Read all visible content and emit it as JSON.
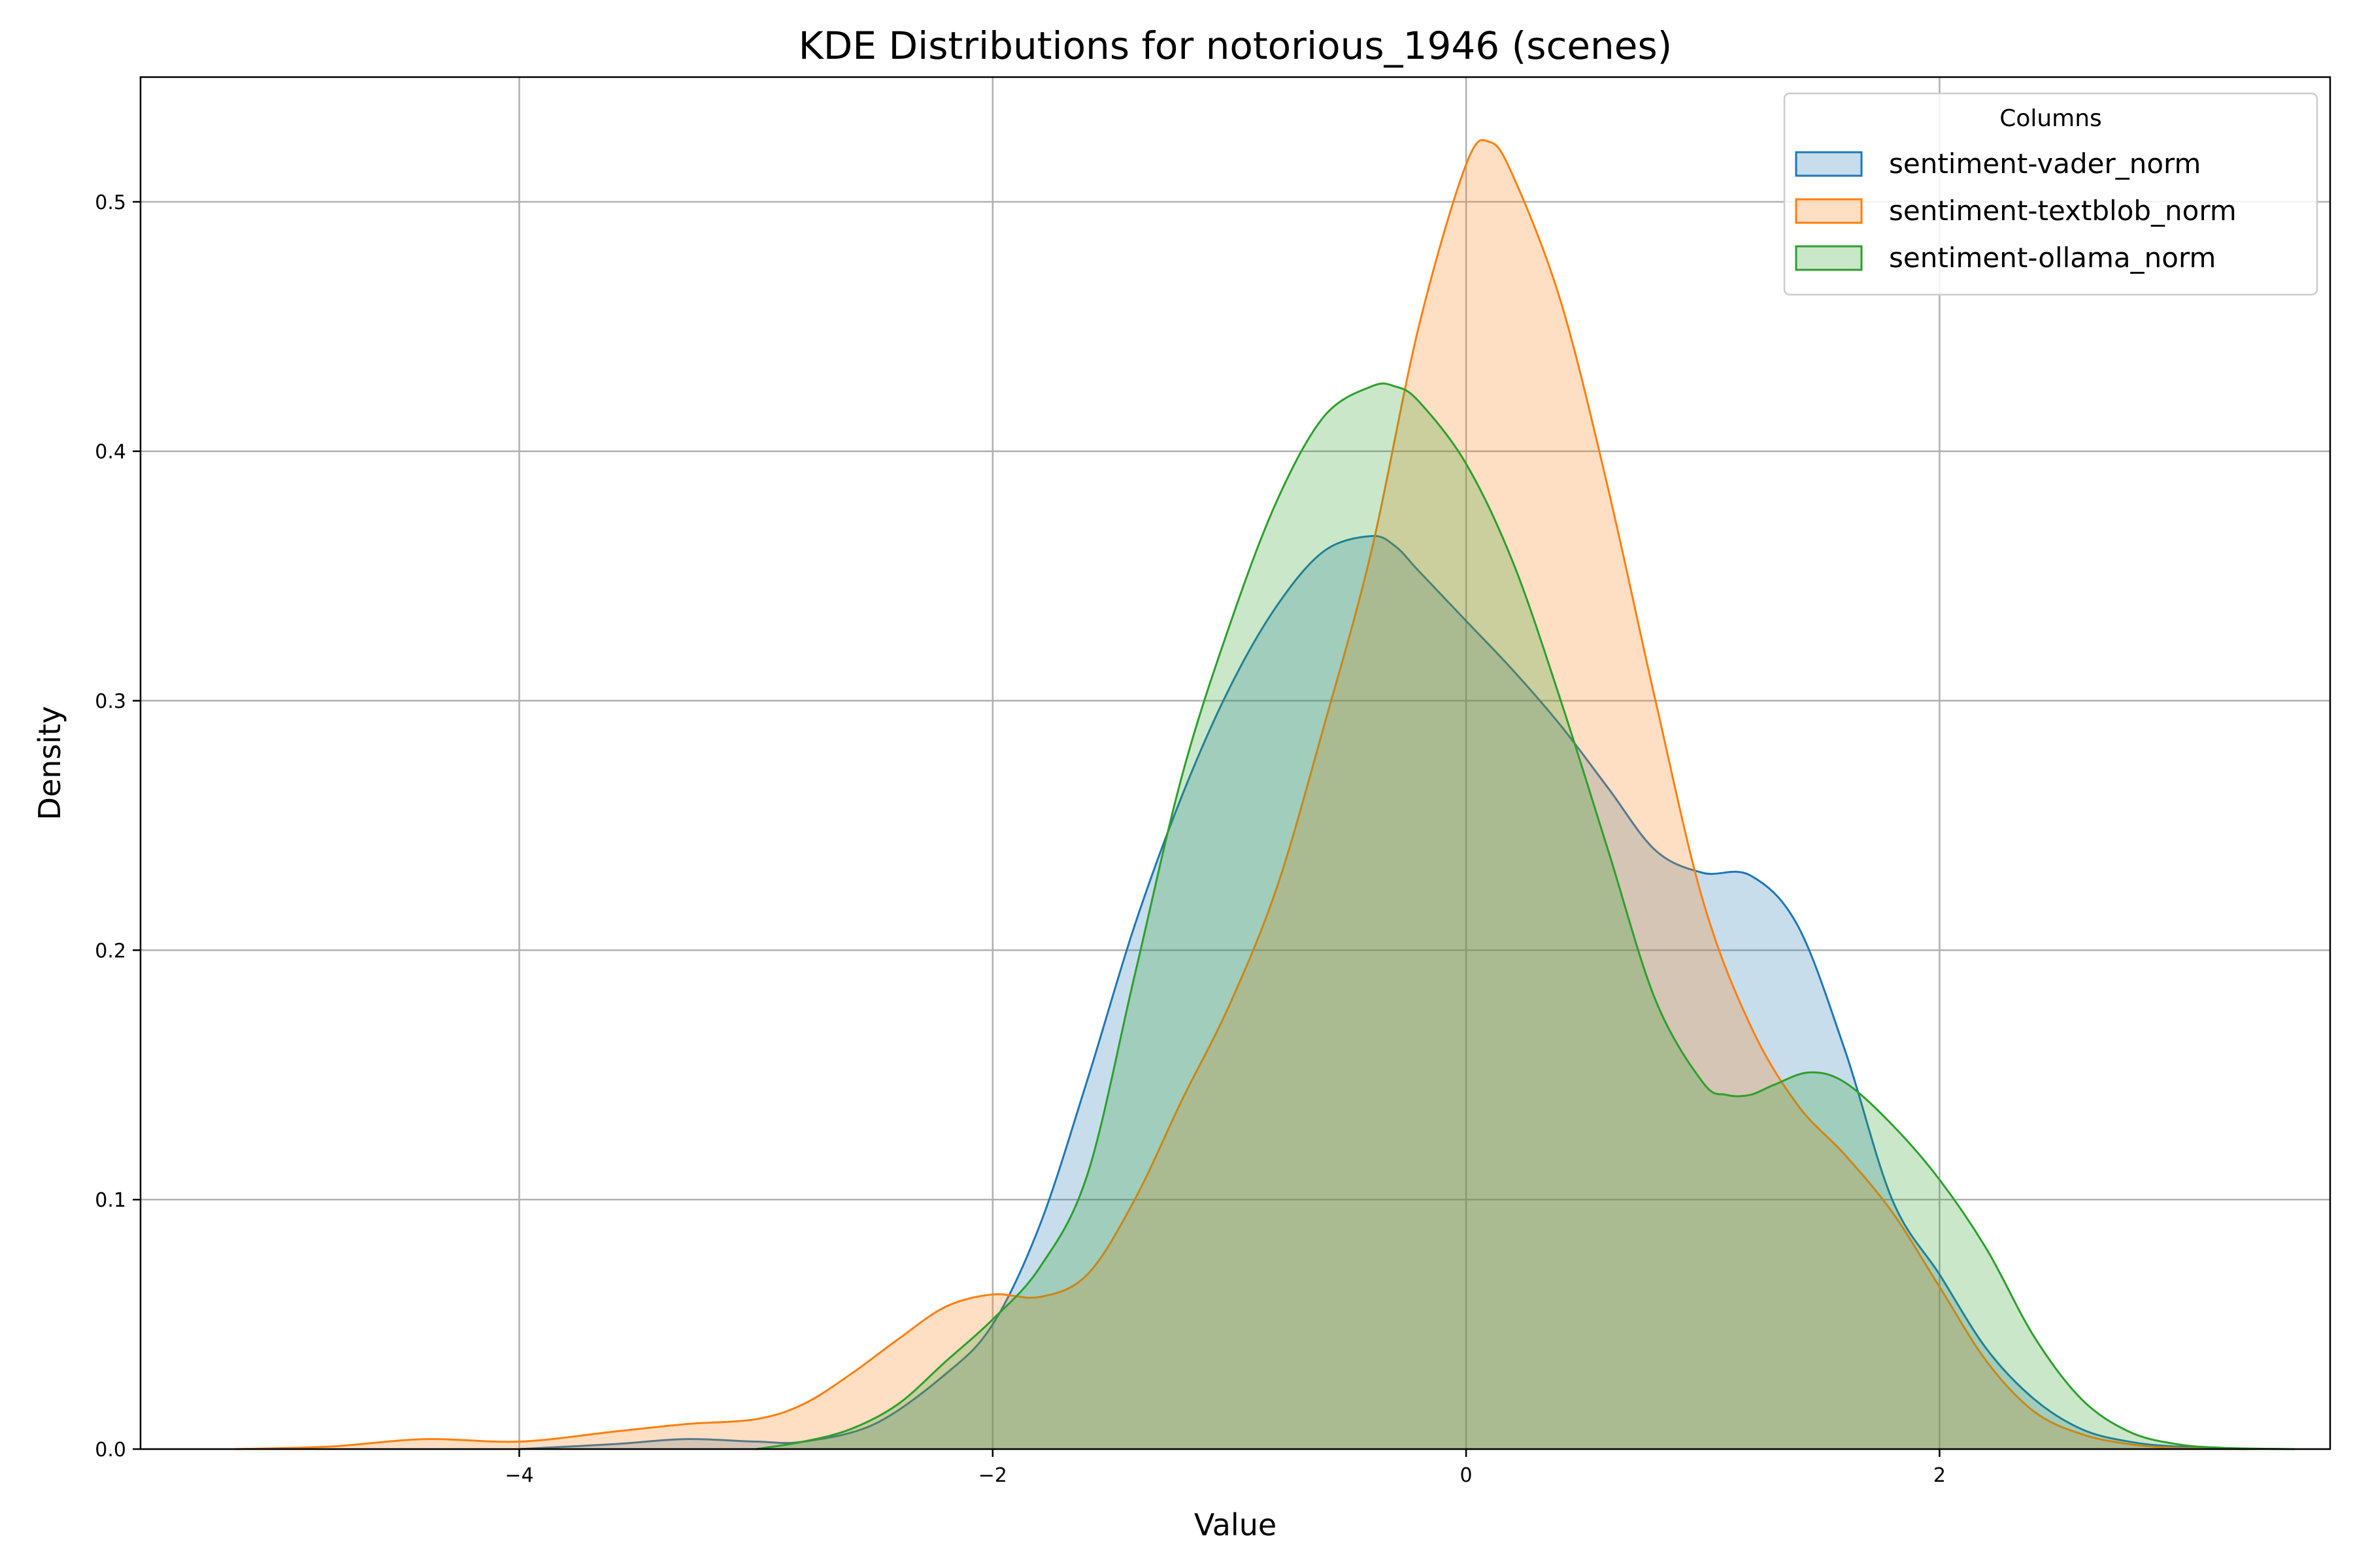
{
  "chart_data": {
    "type": "area",
    "title": "KDE Distributions for notorious_1946 (scenes)",
    "xlabel": "Value",
    "ylabel": "Density",
    "xlim": [
      -5.6,
      3.65
    ],
    "ylim": [
      0,
      0.55
    ],
    "xticks": [
      -4,
      -2,
      0,
      2
    ],
    "xtick_labels": [
      "−4",
      "−2",
      "0",
      "2"
    ],
    "yticks": [
      0.0,
      0.1,
      0.2,
      0.3,
      0.4,
      0.5
    ],
    "ytick_labels": [
      "0.0",
      "0.1",
      "0.2",
      "0.3",
      "0.4",
      "0.5"
    ],
    "grid": true,
    "legend": {
      "title": "Columns",
      "placement": "top-right"
    },
    "series": [
      {
        "name": "sentiment-vader_norm",
        "color": "#1f77b4",
        "x": [
          -4.0,
          -3.6,
          -3.3,
          -3.0,
          -2.8,
          -2.5,
          -2.2,
          -2.0,
          -1.8,
          -1.6,
          -1.4,
          -1.2,
          -1.0,
          -0.8,
          -0.6,
          -0.4,
          -0.3,
          -0.2,
          0.0,
          0.2,
          0.4,
          0.6,
          0.8,
          1.0,
          1.2,
          1.4,
          1.6,
          1.8,
          2.0,
          2.2,
          2.4,
          2.6,
          2.8,
          3.0,
          3.3
        ],
        "y": [
          0.0,
          0.002,
          0.004,
          0.003,
          0.003,
          0.01,
          0.03,
          0.05,
          0.09,
          0.148,
          0.21,
          0.262,
          0.305,
          0.338,
          0.36,
          0.366,
          0.362,
          0.352,
          0.332,
          0.312,
          0.29,
          0.265,
          0.24,
          0.231,
          0.23,
          0.21,
          0.16,
          0.1,
          0.07,
          0.04,
          0.02,
          0.008,
          0.003,
          0.001,
          0.0
        ]
      },
      {
        "name": "sentiment-textblob_norm",
        "color": "#ff7f0e",
        "x": [
          -5.2,
          -4.8,
          -4.4,
          -4.0,
          -3.6,
          -3.3,
          -3.0,
          -2.8,
          -2.6,
          -2.4,
          -2.2,
          -2.0,
          -1.8,
          -1.6,
          -1.4,
          -1.2,
          -1.0,
          -0.8,
          -0.6,
          -0.4,
          -0.2,
          0.0,
          0.1,
          0.2,
          0.4,
          0.6,
          0.8,
          1.0,
          1.2,
          1.4,
          1.6,
          1.8,
          2.0,
          2.2,
          2.4,
          2.6,
          2.8,
          3.0,
          3.3
        ],
        "y": [
          0.0,
          0.001,
          0.004,
          0.003,
          0.007,
          0.01,
          0.012,
          0.018,
          0.03,
          0.044,
          0.057,
          0.062,
          0.061,
          0.07,
          0.1,
          0.14,
          0.178,
          0.225,
          0.29,
          0.36,
          0.45,
          0.515,
          0.524,
          0.51,
          0.46,
          0.385,
          0.3,
          0.22,
          0.17,
          0.138,
          0.118,
          0.095,
          0.065,
          0.035,
          0.015,
          0.006,
          0.002,
          0.0005,
          0.0
        ]
      },
      {
        "name": "sentiment-ollama_norm",
        "color": "#2ca02c",
        "x": [
          -3.0,
          -2.8,
          -2.6,
          -2.4,
          -2.2,
          -2.0,
          -1.8,
          -1.6,
          -1.4,
          -1.2,
          -1.0,
          -0.8,
          -0.6,
          -0.4,
          -0.3,
          -0.2,
          0.0,
          0.2,
          0.4,
          0.6,
          0.8,
          1.0,
          1.1,
          1.2,
          1.3,
          1.45,
          1.6,
          1.8,
          2.0,
          2.2,
          2.4,
          2.6,
          2.8,
          3.0,
          3.2,
          3.5
        ],
        "y": [
          0.0,
          0.003,
          0.008,
          0.018,
          0.035,
          0.052,
          0.073,
          0.11,
          0.19,
          0.27,
          0.33,
          0.38,
          0.414,
          0.426,
          0.426,
          0.42,
          0.395,
          0.355,
          0.3,
          0.24,
          0.18,
          0.147,
          0.142,
          0.142,
          0.146,
          0.151,
          0.147,
          0.13,
          0.108,
          0.08,
          0.045,
          0.02,
          0.007,
          0.002,
          0.0005,
          0.0
        ]
      }
    ]
  }
}
